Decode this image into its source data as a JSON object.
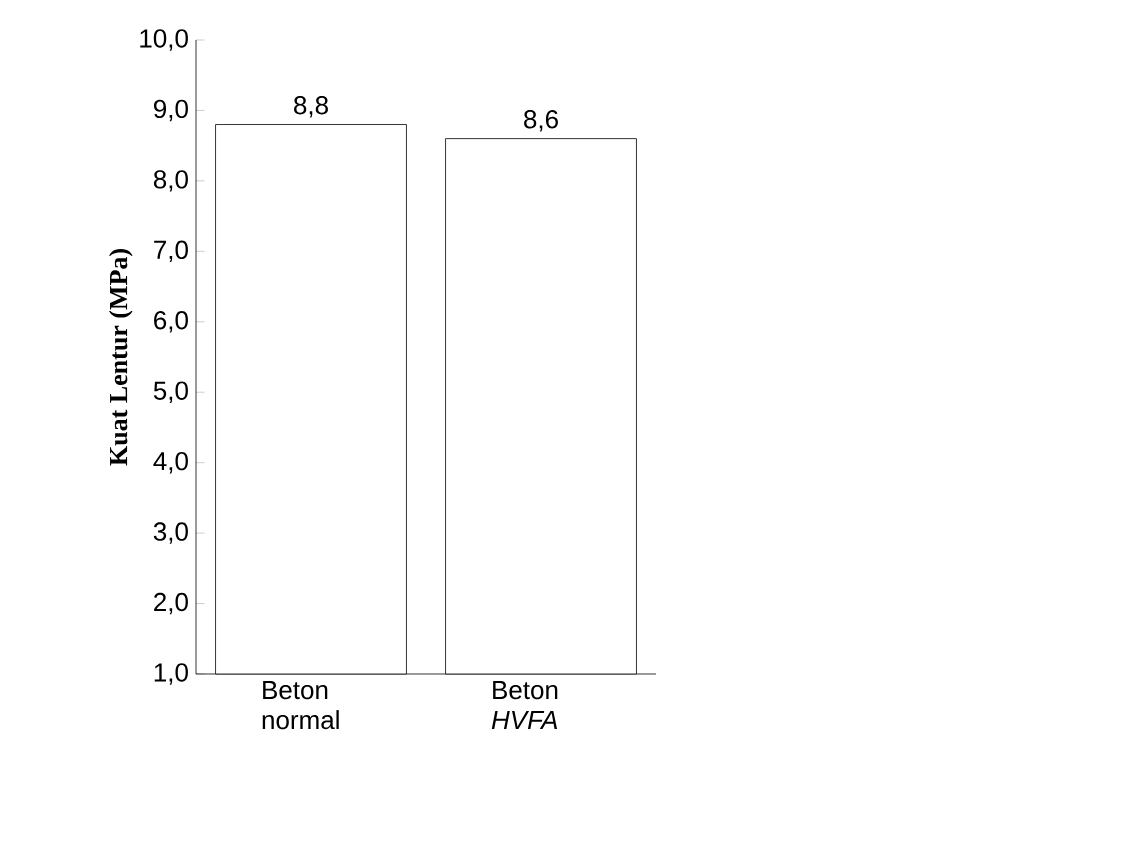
{
  "chart_data": {
    "type": "bar",
    "ylabel": "Kuat Lentur (MPa)",
    "categories": [
      "Beton normal",
      "Beton *HVFA*"
    ],
    "values": [
      8.8,
      8.6
    ],
    "value_labels": [
      "8,8",
      "8,6"
    ],
    "colors": [
      "#000000",
      "#000000"
    ],
    "ylim": [
      1,
      10
    ],
    "yticks": [
      {
        "value": 1,
        "label": "1,0"
      },
      {
        "value": 2,
        "label": "2,0"
      },
      {
        "value": 3,
        "label": "3,0"
      },
      {
        "value": 4,
        "label": "4,0"
      },
      {
        "value": 5,
        "label": "5,0"
      },
      {
        "value": 6,
        "label": "6,0"
      },
      {
        "value": 7,
        "label": "7,0"
      },
      {
        "value": 8,
        "label": "8,0"
      },
      {
        "value": 9,
        "label": "9,0"
      },
      {
        "value": 10,
        "label": "10,0"
      }
    ],
    "grid": false
  }
}
